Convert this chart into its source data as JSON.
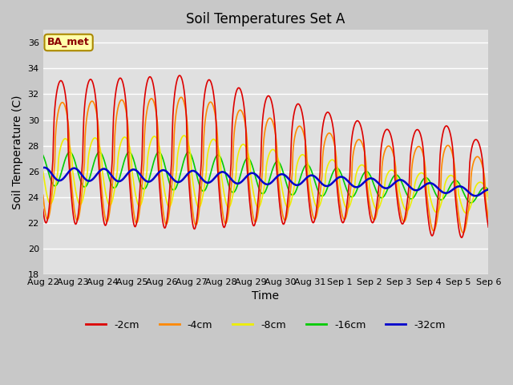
{
  "title": "Soil Temperatures Set A",
  "xlabel": "Time",
  "ylabel": "Soil Temperature (C)",
  "ylim": [
    18,
    37
  ],
  "yticks": [
    18,
    20,
    22,
    24,
    26,
    28,
    30,
    32,
    34,
    36
  ],
  "annotation": "BA_met",
  "fig_facecolor": "#c8c8c8",
  "ax_facecolor": "#e0e0e0",
  "series": {
    "-2cm": {
      "color": "#dd0000",
      "lw": 1.2
    },
    "-4cm": {
      "color": "#ff8800",
      "lw": 1.2
    },
    "-8cm": {
      "color": "#eeee00",
      "lw": 1.2
    },
    "-16cm": {
      "color": "#00cc00",
      "lw": 1.2
    },
    "-32cm": {
      "color": "#0000cc",
      "lw": 1.8
    }
  },
  "x_labels": [
    "Aug 22",
    "Aug 23",
    "Aug 24",
    "Aug 25",
    "Aug 26",
    "Aug 27",
    "Aug 28",
    "Aug 29",
    "Aug 30",
    "Aug 31",
    "Sep 1",
    "Sep 2",
    "Sep 3",
    "Sep 4",
    "Sep 5",
    "Sep 6"
  ]
}
